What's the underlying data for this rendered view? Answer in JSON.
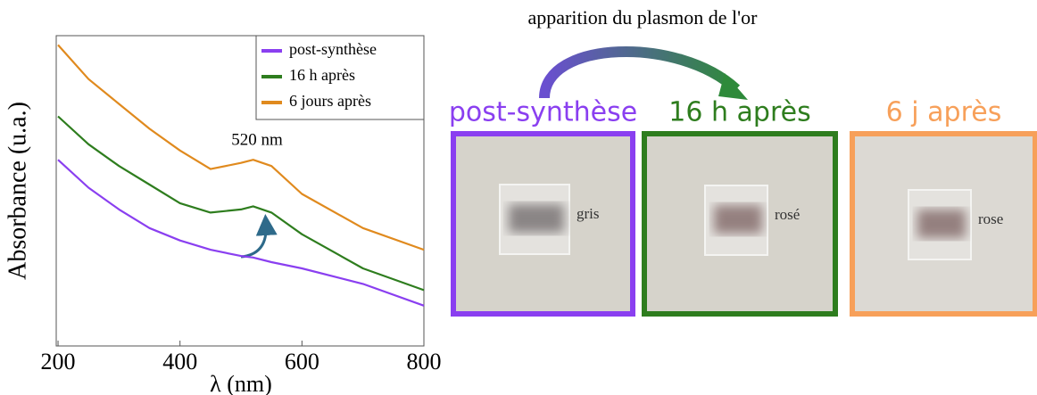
{
  "chart_data": {
    "type": "line",
    "x_label": "λ (nm)",
    "y_label": "Absorbance (u.a.)",
    "annotation": "520 nm",
    "x": [
      200,
      250,
      300,
      350,
      400,
      450,
      500,
      520,
      550,
      600,
      700,
      800
    ],
    "series": [
      {
        "name": "post-synthèse",
        "color": "#8a3ff0",
        "values": [
          0.6,
          0.51,
          0.44,
          0.38,
          0.34,
          0.31,
          0.29,
          0.285,
          0.27,
          0.25,
          0.2,
          0.13
        ]
      },
      {
        "name": "16 h après",
        "color": "#2e7d1e",
        "values": [
          0.74,
          0.65,
          0.58,
          0.52,
          0.46,
          0.43,
          0.44,
          0.45,
          0.43,
          0.36,
          0.25,
          0.18
        ]
      },
      {
        "name": "6 jours après",
        "color": "#e08a1e",
        "values": [
          0.97,
          0.86,
          0.78,
          0.7,
          0.63,
          0.57,
          0.59,
          0.6,
          0.58,
          0.49,
          0.38,
          0.31
        ]
      }
    ],
    "xlim": [
      197,
      800
    ],
    "xticks": [
      200,
      400,
      600,
      800
    ],
    "ylim": [
      0,
      1
    ],
    "legend": "upper right"
  },
  "figure": {
    "caption": "apparition du plasmon de l'or",
    "panels": [
      {
        "title": "post-synthèse",
        "color": "#8a3ff0",
        "label": "gris"
      },
      {
        "title": "16 h après",
        "color": "#2e7d1e",
        "label": "rosé"
      },
      {
        "title": "6 j après",
        "color": "#f7a05a",
        "label": "rose"
      }
    ]
  }
}
